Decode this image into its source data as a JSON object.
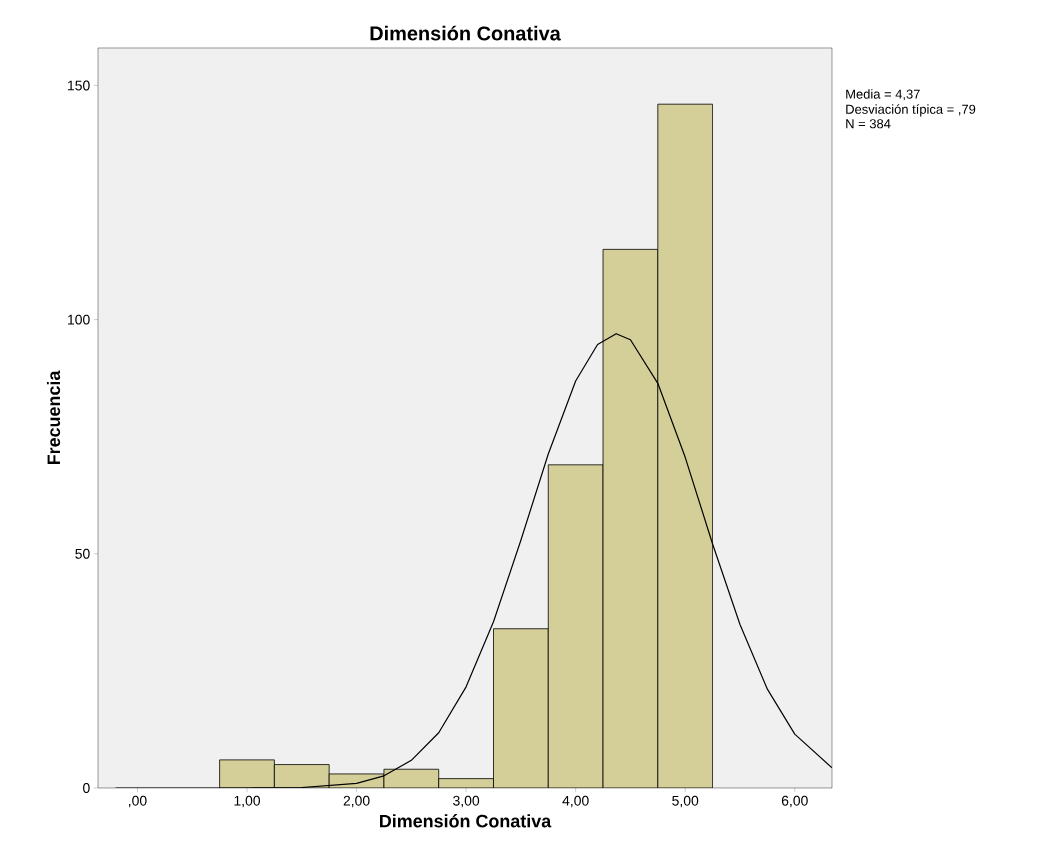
{
  "chart_data": {
    "type": "histogram",
    "title": "Dimensión Conativa",
    "xlabel": "Dimensión Conativa",
    "ylabel": "Frecuencia",
    "bins": [
      0.75,
      1.25,
      1.75,
      2.25,
      2.75,
      3.25,
      3.75,
      4.25,
      4.75,
      5.25
    ],
    "values": [
      6,
      5,
      3,
      4,
      2,
      34,
      69,
      115,
      146
    ],
    "color": "#d4cf98",
    "series": [
      {
        "type": "line",
        "color": "#000000",
        "x": [
          -0.2,
          0.5,
          1.0,
          1.5,
          2.0,
          2.25,
          2.5,
          2.75,
          3.0,
          3.25,
          3.5,
          3.75,
          4.0,
          4.2,
          4.37,
          4.5,
          4.75,
          5.0,
          5.25,
          5.5,
          5.75,
          6.0,
          6.34
        ],
        "values": [
          0,
          0,
          0,
          0.1,
          1,
          2.6,
          5.9,
          11.8,
          21.6,
          35.5,
          52.9,
          71.3,
          86.9,
          94.7,
          97,
          95.7,
          86.4,
          70.6,
          52.1,
          34.9,
          21.1,
          11.5,
          4.3
        ]
      }
    ],
    "xlim": [
      -0.36,
      6.34
    ],
    "ylim": [
      0,
      158
    ],
    "xticks": [
      {
        "value": 0,
        "label": ",00"
      },
      {
        "value": 1,
        "label": "1,00"
      },
      {
        "value": 2,
        "label": "2,00"
      },
      {
        "value": 3,
        "label": "3,00"
      },
      {
        "value": 4,
        "label": "4,00"
      },
      {
        "value": 5,
        "label": "5,00"
      },
      {
        "value": 6,
        "label": "6,00"
      }
    ],
    "yticks": [
      0,
      50,
      100,
      150
    ],
    "annotations": [
      "Media = 4,37",
      "Desviación típica = ,79",
      "N = 384"
    ]
  }
}
